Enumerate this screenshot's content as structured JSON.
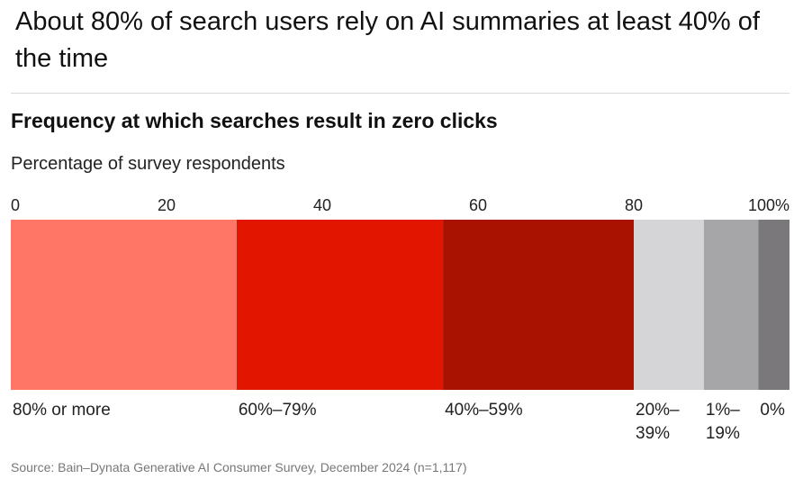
{
  "headline": "About 80% of search users rely on AI summaries at least 40% of the time",
  "source": "Source: Bain–Dynata Generative AI Consumer Survey, December 2024 (n=1,117)",
  "chart_data": {
    "type": "bar",
    "orientation": "horizontal-stacked",
    "title": "Frequency at which searches result in zero clicks",
    "subtitle": "Percentage of survey respondents",
    "xlim": [
      0,
      100
    ],
    "ticks": [
      {
        "value": 0,
        "label": "0"
      },
      {
        "value": 20,
        "label": "20"
      },
      {
        "value": 40,
        "label": "40"
      },
      {
        "value": 60,
        "label": "60"
      },
      {
        "value": 80,
        "label": "80"
      },
      {
        "value": 100,
        "label": "100%"
      }
    ],
    "segments": [
      {
        "label": "80% or more",
        "label_lines": [
          "80% or more"
        ],
        "value": 29,
        "color": "#ff7566"
      },
      {
        "label": "60%–79%",
        "label_lines": [
          "60%–79%"
        ],
        "value": 26.5,
        "color": "#e11500"
      },
      {
        "label": "40%–59%",
        "label_lines": [
          "40%–59%"
        ],
        "value": 24.5,
        "color": "#a91100"
      },
      {
        "label": "20%–39%",
        "label_lines": [
          "20%–",
          "39%"
        ],
        "value": 9,
        "color": "#d5d5d7"
      },
      {
        "label": "1%–19%",
        "label_lines": [
          "1%–",
          "19%"
        ],
        "value": 7,
        "color": "#a6a5a8"
      },
      {
        "label": "0%",
        "label_lines": [
          "0%"
        ],
        "value": 4,
        "color": "#7a787b"
      }
    ]
  }
}
